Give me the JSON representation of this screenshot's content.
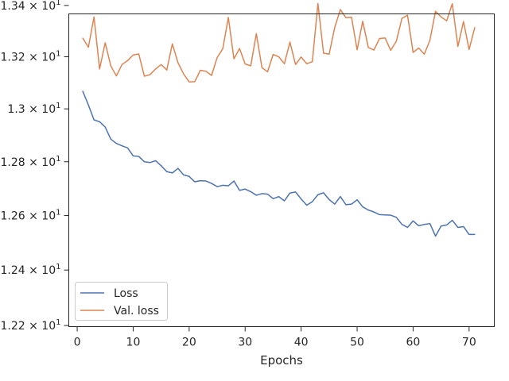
{
  "chart_data": {
    "type": "line",
    "xlabel": "Epochs",
    "ylabel": "",
    "title": "",
    "xlim": [
      -1.5,
      74.5
    ],
    "ylim": [
      12.196,
      13.367
    ],
    "yscale": "log",
    "grid": false,
    "x_ticks": [
      0,
      10,
      20,
      30,
      40,
      50,
      60,
      70
    ],
    "x_tick_labels": [
      "0",
      "10",
      "20",
      "30",
      "40",
      "50",
      "60",
      "70"
    ],
    "y_ticks": [
      12.2,
      12.4,
      12.6,
      12.8,
      13.0,
      13.2,
      13.4
    ],
    "y_tick_labels": [
      {
        "mantissa": "1.22",
        "exp": "1"
      },
      {
        "mantissa": "1.24",
        "exp": "1"
      },
      {
        "mantissa": "1.26",
        "exp": "1"
      },
      {
        "mantissa": "1.28",
        "exp": "1"
      },
      {
        "mantissa": "1.3",
        "exp": "1"
      },
      {
        "mantissa": "1.32",
        "exp": "1"
      },
      {
        "mantissa": "1.34",
        "exp": "1"
      }
    ],
    "legend_position": "lower-left",
    "x": [
      1,
      2,
      3,
      4,
      5,
      6,
      7,
      8,
      9,
      10,
      11,
      12,
      13,
      14,
      15,
      16,
      17,
      18,
      19,
      20,
      21,
      22,
      23,
      24,
      25,
      26,
      27,
      28,
      29,
      30,
      31,
      32,
      33,
      34,
      35,
      36,
      37,
      38,
      39,
      40,
      41,
      42,
      43,
      44,
      45,
      46,
      47,
      48,
      49,
      50,
      51,
      52,
      53,
      54,
      55,
      56,
      57,
      58,
      59,
      60,
      61,
      62,
      63,
      64,
      65,
      66,
      67,
      68,
      69,
      70,
      71
    ],
    "series": [
      {
        "name": "Loss",
        "color": "#4c72b0",
        "values": [
          13.067,
          13.015,
          12.958,
          12.951,
          12.931,
          12.885,
          12.869,
          12.86,
          12.852,
          12.822,
          12.82,
          12.8,
          12.797,
          12.804,
          12.785,
          12.763,
          12.758,
          12.775,
          12.751,
          12.745,
          12.725,
          12.729,
          12.728,
          12.719,
          12.707,
          12.712,
          12.71,
          12.728,
          12.693,
          12.698,
          12.688,
          12.675,
          12.681,
          12.679,
          12.662,
          12.67,
          12.654,
          12.683,
          12.687,
          12.661,
          12.638,
          12.651,
          12.677,
          12.684,
          12.659,
          12.642,
          12.67,
          12.64,
          12.642,
          12.658,
          12.632,
          12.62,
          12.613,
          12.603,
          12.602,
          12.601,
          12.593,
          12.567,
          12.556,
          12.58,
          12.562,
          12.567,
          12.57,
          12.524,
          12.561,
          12.565,
          12.582,
          12.556,
          12.559,
          12.53,
          12.53
        ]
      },
      {
        "name": "Val. loss",
        "color": "#dd8452",
        "values": [
          13.272,
          13.237,
          13.355,
          13.153,
          13.254,
          13.165,
          13.126,
          13.17,
          13.185,
          13.207,
          13.211,
          13.125,
          13.131,
          13.153,
          13.17,
          13.149,
          13.25,
          13.177,
          13.134,
          13.103,
          13.104,
          13.148,
          13.144,
          13.128,
          13.197,
          13.231,
          13.353,
          13.192,
          13.232,
          13.172,
          13.165,
          13.29,
          13.158,
          13.142,
          13.209,
          13.2,
          13.173,
          13.257,
          13.17,
          13.199,
          13.173,
          13.181,
          13.408,
          13.214,
          13.21,
          13.314,
          13.384,
          13.352,
          13.354,
          13.227,
          13.338,
          13.236,
          13.226,
          13.271,
          13.273,
          13.225,
          13.26,
          13.349,
          13.362,
          13.217,
          13.234,
          13.21,
          13.264,
          13.377,
          13.355,
          13.34,
          13.407,
          13.24,
          13.337,
          13.228,
          13.313
        ]
      }
    ]
  }
}
